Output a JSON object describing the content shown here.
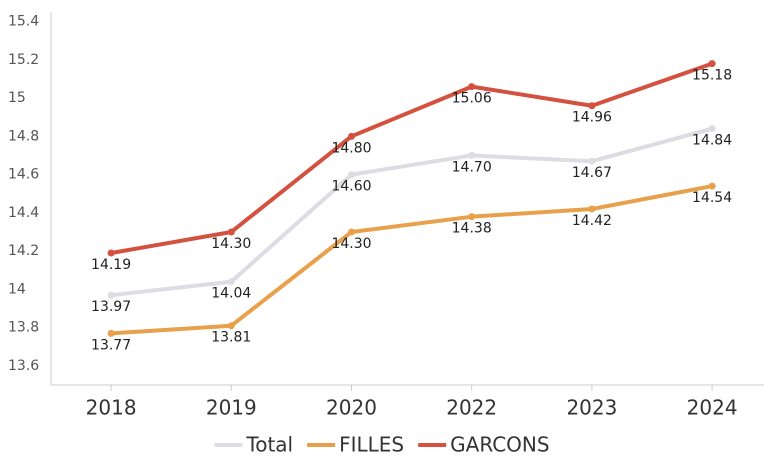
{
  "chart_data": {
    "type": "line",
    "categories": [
      "2018",
      "2019",
      "2020",
      "2022",
      "2023",
      "2024"
    ],
    "series": [
      {
        "name": "Total",
        "color": "#dcdce3",
        "values": [
          13.97,
          14.04,
          14.6,
          14.7,
          14.67,
          14.84
        ],
        "value_labels": [
          "13.97",
          "14.04",
          "14.60",
          "14.70",
          "14.67",
          "14.84"
        ]
      },
      {
        "name": "FILLES",
        "color": "#e8a04a",
        "values": [
          13.77,
          13.81,
          14.3,
          14.38,
          14.42,
          14.54
        ],
        "value_labels": [
          "13.77",
          "13.81",
          "14.30",
          "14.38",
          "14.42",
          "14.54"
        ]
      },
      {
        "name": "GARCONS",
        "color": "#d45140",
        "values": [
          14.19,
          14.3,
          14.8,
          15.06,
          14.96,
          15.18
        ],
        "value_labels": [
          "14.19",
          "14.30",
          "14.80",
          "15.06",
          "14.96",
          "15.18"
        ]
      }
    ],
    "ylim": [
      13.5,
      15.45
    ],
    "yticks": [
      13.6,
      13.8,
      14,
      14.2,
      14.4,
      14.6,
      14.8,
      15,
      15.2,
      15.4
    ],
    "legend": "bottom"
  }
}
